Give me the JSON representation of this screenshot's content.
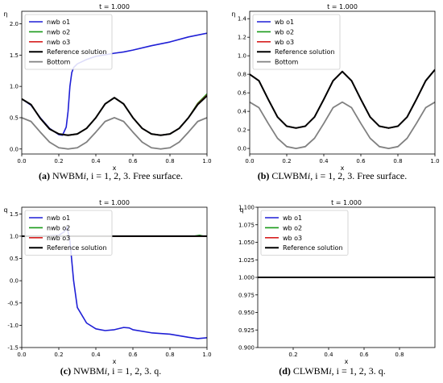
{
  "captions": [
    {
      "tag": "(a)",
      "scheme": "NWBM",
      "idx": "i",
      "rest": ", i = 1, 2, 3. Free surface."
    },
    {
      "tag": "(b)",
      "scheme": "CLWBM",
      "idx": "i",
      "rest": ", i = 1, 2, 3. Free surface."
    },
    {
      "tag": "(c)",
      "scheme": "NWBM",
      "idx": "i",
      "rest": ", i = 1, 2, 3. q."
    },
    {
      "tag": "(d)",
      "scheme": "CLWBM",
      "idx": "i",
      "rest": ", i = 1, 2, 3. q."
    }
  ],
  "chart_data": [
    {
      "type": "line",
      "title": "t = 1.000",
      "xlabel": "x",
      "ylabel": "η",
      "xlim": [
        0.0,
        1.0
      ],
      "ylim": [
        -0.08,
        2.2
      ],
      "xticks": [
        "0.0",
        "0.2",
        "0.4",
        "0.6",
        "0.8",
        "1.0"
      ],
      "xtick_values": [
        0.0,
        0.2,
        0.4,
        0.6,
        0.8,
        1.0
      ],
      "yticks": [
        "0.0",
        "0.5",
        "1.0",
        "1.5",
        "2.0"
      ],
      "ytick_values": [
        0.0,
        0.5,
        1.0,
        1.5,
        2.0
      ],
      "legend_position": "top-left",
      "series": [
        {
          "name": "nwb o1",
          "color": "#1f1fd6",
          "width": 1.6,
          "x": [
            0.0,
            0.05,
            0.1,
            0.15,
            0.2,
            0.22,
            0.24,
            0.25,
            0.26,
            0.27,
            0.28,
            0.3,
            0.35,
            0.4,
            0.5,
            0.55,
            0.6,
            0.7,
            0.8,
            0.9,
            1.0
          ],
          "y": [
            0.8,
            0.7,
            0.5,
            0.33,
            0.23,
            0.22,
            0.35,
            0.6,
            1.0,
            1.22,
            1.3,
            1.36,
            1.43,
            1.48,
            1.53,
            1.55,
            1.58,
            1.65,
            1.71,
            1.79,
            1.85
          ]
        },
        {
          "name": "nwb o2",
          "color": "#1a9a1a",
          "width": 1.6,
          "x": [
            0.0,
            0.05,
            0.1,
            0.15,
            0.2,
            0.25,
            0.3,
            0.35,
            0.4,
            0.45,
            0.5,
            0.55,
            0.6,
            0.65,
            0.7,
            0.75,
            0.8,
            0.85,
            0.9,
            0.95,
            1.0
          ],
          "y": [
            0.8,
            0.71,
            0.49,
            0.32,
            0.24,
            0.22,
            0.24,
            0.33,
            0.5,
            0.72,
            0.82,
            0.72,
            0.5,
            0.33,
            0.24,
            0.22,
            0.24,
            0.33,
            0.5,
            0.73,
            0.88
          ]
        },
        {
          "name": "nwb o3",
          "color": "#d62020",
          "width": 1.6,
          "x": [
            0.0,
            0.05,
            0.1,
            0.15,
            0.2,
            0.25,
            0.3,
            0.35,
            0.4,
            0.45,
            0.5,
            0.55,
            0.6,
            0.65,
            0.7,
            0.75,
            0.8,
            0.85,
            0.9,
            0.95,
            1.0
          ],
          "y": [
            0.8,
            0.71,
            0.49,
            0.32,
            0.24,
            0.22,
            0.24,
            0.33,
            0.5,
            0.72,
            0.82,
            0.72,
            0.5,
            0.33,
            0.24,
            0.22,
            0.24,
            0.33,
            0.5,
            0.72,
            0.86
          ]
        },
        {
          "name": "Reference solution",
          "color": "#000000",
          "width": 2.0,
          "x": [
            0.0,
            0.05,
            0.1,
            0.15,
            0.2,
            0.25,
            0.3,
            0.35,
            0.4,
            0.45,
            0.5,
            0.55,
            0.6,
            0.65,
            0.7,
            0.75,
            0.8,
            0.85,
            0.9,
            0.95,
            1.0
          ],
          "y": [
            0.8,
            0.71,
            0.49,
            0.32,
            0.24,
            0.22,
            0.24,
            0.33,
            0.5,
            0.72,
            0.82,
            0.72,
            0.5,
            0.33,
            0.24,
            0.22,
            0.24,
            0.33,
            0.5,
            0.71,
            0.85
          ]
        },
        {
          "name": "Bottom",
          "color": "#808080",
          "width": 1.8,
          "x": [
            0.0,
            0.05,
            0.1,
            0.15,
            0.2,
            0.25,
            0.3,
            0.35,
            0.4,
            0.45,
            0.5,
            0.55,
            0.6,
            0.65,
            0.7,
            0.75,
            0.8,
            0.85,
            0.9,
            0.95,
            1.0
          ],
          "y": [
            0.5,
            0.44,
            0.27,
            0.11,
            0.02,
            0.0,
            0.02,
            0.11,
            0.27,
            0.44,
            0.5,
            0.44,
            0.27,
            0.11,
            0.02,
            0.0,
            0.02,
            0.11,
            0.27,
            0.44,
            0.5
          ]
        }
      ]
    },
    {
      "type": "line",
      "title": "t = 1.000",
      "xlabel": "x",
      "ylabel": "η",
      "xlim": [
        0.0,
        1.0
      ],
      "ylim": [
        -0.06,
        1.48
      ],
      "xticks": [
        "0.0",
        "0.2",
        "0.4",
        "0.6",
        "0.8",
        "1.0"
      ],
      "xtick_values": [
        0.0,
        0.2,
        0.4,
        0.6,
        0.8,
        1.0
      ],
      "yticks": [
        "0.0",
        "0.2",
        "0.4",
        "0.6",
        "0.8",
        "1.0",
        "1.2",
        "1.4"
      ],
      "ytick_values": [
        0.0,
        0.2,
        0.4,
        0.6,
        0.8,
        1.0,
        1.2,
        1.4
      ],
      "legend_position": "top-left",
      "series": [
        {
          "name": "wb o1",
          "color": "#1f1fd6",
          "width": 1.6,
          "x": [
            0.0,
            0.05,
            0.1,
            0.15,
            0.2,
            0.25,
            0.3,
            0.35,
            0.4,
            0.45,
            0.5,
            0.55,
            0.6,
            0.65,
            0.7,
            0.75,
            0.8,
            0.85,
            0.9,
            0.95,
            1.0
          ],
          "y": [
            0.8,
            0.73,
            0.53,
            0.34,
            0.24,
            0.22,
            0.24,
            0.34,
            0.53,
            0.73,
            0.83,
            0.73,
            0.53,
            0.34,
            0.24,
            0.22,
            0.24,
            0.34,
            0.53,
            0.73,
            0.85
          ]
        },
        {
          "name": "wb o2",
          "color": "#1a9a1a",
          "width": 1.6,
          "x": [
            0.0,
            0.05,
            0.1,
            0.15,
            0.2,
            0.25,
            0.3,
            0.35,
            0.4,
            0.45,
            0.5,
            0.55,
            0.6,
            0.65,
            0.7,
            0.75,
            0.8,
            0.85,
            0.9,
            0.95,
            1.0
          ],
          "y": [
            0.8,
            0.73,
            0.53,
            0.34,
            0.24,
            0.22,
            0.24,
            0.34,
            0.53,
            0.73,
            0.83,
            0.73,
            0.53,
            0.34,
            0.24,
            0.22,
            0.24,
            0.34,
            0.53,
            0.73,
            0.85
          ]
        },
        {
          "name": "wb o3",
          "color": "#d62020",
          "width": 1.6,
          "x": [
            0.0,
            0.05,
            0.1,
            0.15,
            0.2,
            0.25,
            0.3,
            0.35,
            0.4,
            0.45,
            0.5,
            0.55,
            0.6,
            0.65,
            0.7,
            0.75,
            0.8,
            0.85,
            0.9,
            0.95,
            1.0
          ],
          "y": [
            0.8,
            0.73,
            0.53,
            0.34,
            0.24,
            0.22,
            0.24,
            0.34,
            0.53,
            0.73,
            0.83,
            0.73,
            0.53,
            0.34,
            0.24,
            0.22,
            0.24,
            0.34,
            0.53,
            0.73,
            0.85
          ]
        },
        {
          "name": "Reference solution",
          "color": "#000000",
          "width": 2.0,
          "x": [
            0.0,
            0.05,
            0.1,
            0.15,
            0.2,
            0.25,
            0.3,
            0.35,
            0.4,
            0.45,
            0.5,
            0.55,
            0.6,
            0.65,
            0.7,
            0.75,
            0.8,
            0.85,
            0.9,
            0.95,
            1.0
          ],
          "y": [
            0.8,
            0.73,
            0.53,
            0.34,
            0.24,
            0.22,
            0.24,
            0.34,
            0.53,
            0.73,
            0.83,
            0.73,
            0.53,
            0.34,
            0.24,
            0.22,
            0.24,
            0.34,
            0.53,
            0.73,
            0.85
          ]
        },
        {
          "name": "Bottom",
          "color": "#808080",
          "width": 1.8,
          "x": [
            0.0,
            0.05,
            0.1,
            0.15,
            0.2,
            0.25,
            0.3,
            0.35,
            0.4,
            0.45,
            0.5,
            0.55,
            0.6,
            0.65,
            0.7,
            0.75,
            0.8,
            0.85,
            0.9,
            0.95,
            1.0
          ],
          "y": [
            0.5,
            0.44,
            0.27,
            0.11,
            0.02,
            0.0,
            0.02,
            0.11,
            0.27,
            0.44,
            0.5,
            0.44,
            0.27,
            0.11,
            0.02,
            0.0,
            0.02,
            0.11,
            0.27,
            0.44,
            0.5
          ]
        }
      ]
    },
    {
      "type": "line",
      "title": "t = 1.000",
      "xlabel": "x",
      "ylabel": "q",
      "xlim": [
        0.0,
        1.0
      ],
      "ylim": [
        -1.5,
        1.65
      ],
      "xticks": [
        "0.0",
        "0.2",
        "0.4",
        "0.6",
        "0.8",
        "1.0"
      ],
      "xtick_values": [
        0.0,
        0.2,
        0.4,
        0.6,
        0.8,
        1.0
      ],
      "yticks": [
        "-1.5",
        "-1.0",
        "-0.5",
        "0.0",
        "0.5",
        "1.0",
        "1.5"
      ],
      "ytick_values": [
        -1.5,
        -1.0,
        -0.5,
        0.0,
        0.5,
        1.0,
        1.5
      ],
      "legend_position": "top-left",
      "series": [
        {
          "name": "nwb o1",
          "color": "#1f1fd6",
          "width": 1.6,
          "x": [
            0.0,
            0.1,
            0.2,
            0.23,
            0.245,
            0.26,
            0.28,
            0.3,
            0.35,
            0.4,
            0.45,
            0.5,
            0.55,
            0.58,
            0.6,
            0.7,
            0.8,
            0.9,
            0.95,
            1.0
          ],
          "y": [
            1.0,
            1.0,
            1.02,
            1.1,
            1.2,
            0.9,
            0.0,
            -0.6,
            -0.95,
            -1.08,
            -1.12,
            -1.1,
            -1.05,
            -1.06,
            -1.1,
            -1.17,
            -1.2,
            -1.27,
            -1.3,
            -1.28
          ]
        },
        {
          "name": "nwb o2",
          "color": "#1a9a1a",
          "width": 1.6,
          "x": [
            0.0,
            0.5,
            0.93,
            0.96,
            0.98,
            1.0
          ],
          "y": [
            1.0,
            1.0,
            1.0,
            1.02,
            1.0,
            1.0
          ]
        },
        {
          "name": "nwb o3",
          "color": "#d62020",
          "width": 1.6,
          "x": [
            0.0,
            0.5,
            1.0
          ],
          "y": [
            1.0,
            1.0,
            1.0
          ]
        },
        {
          "name": "Reference solution",
          "color": "#000000",
          "width": 2.0,
          "x": [
            0.0,
            0.5,
            1.0
          ],
          "y": [
            1.0,
            1.0,
            1.0
          ]
        }
      ]
    },
    {
      "type": "line",
      "title": "t = 1.000",
      "xlabel": "x",
      "ylabel": "q",
      "xlim": [
        0.0,
        1.0
      ],
      "ylim": [
        0.9,
        1.1
      ],
      "xticks": [
        "0.2",
        "0.4",
        "0.6",
        "0.8"
      ],
      "xtick_values": [
        0.2,
        0.4,
        0.6,
        0.8
      ],
      "yticks": [
        "0.900",
        "0.925",
        "0.950",
        "0.975",
        "1.000",
        "1.025",
        "1.050",
        "1.075",
        "1.100"
      ],
      "ytick_values": [
        0.9,
        0.925,
        0.95,
        0.975,
        1.0,
        1.025,
        1.05,
        1.075,
        1.1
      ],
      "legend_position": "top-left",
      "series": [
        {
          "name": "wb o1",
          "color": "#1f1fd6",
          "width": 1.6,
          "x": [
            0.0,
            1.0
          ],
          "y": [
            1.0,
            1.0
          ]
        },
        {
          "name": "wb o2",
          "color": "#1a9a1a",
          "width": 1.6,
          "x": [
            0.0,
            1.0
          ],
          "y": [
            1.0,
            1.0
          ]
        },
        {
          "name": "wb o3",
          "color": "#d62020",
          "width": 1.6,
          "x": [
            0.0,
            1.0
          ],
          "y": [
            1.0,
            1.0
          ]
        },
        {
          "name": "Reference solution",
          "color": "#000000",
          "width": 2.0,
          "x": [
            0.0,
            1.0
          ],
          "y": [
            1.0,
            1.0
          ]
        }
      ]
    }
  ]
}
